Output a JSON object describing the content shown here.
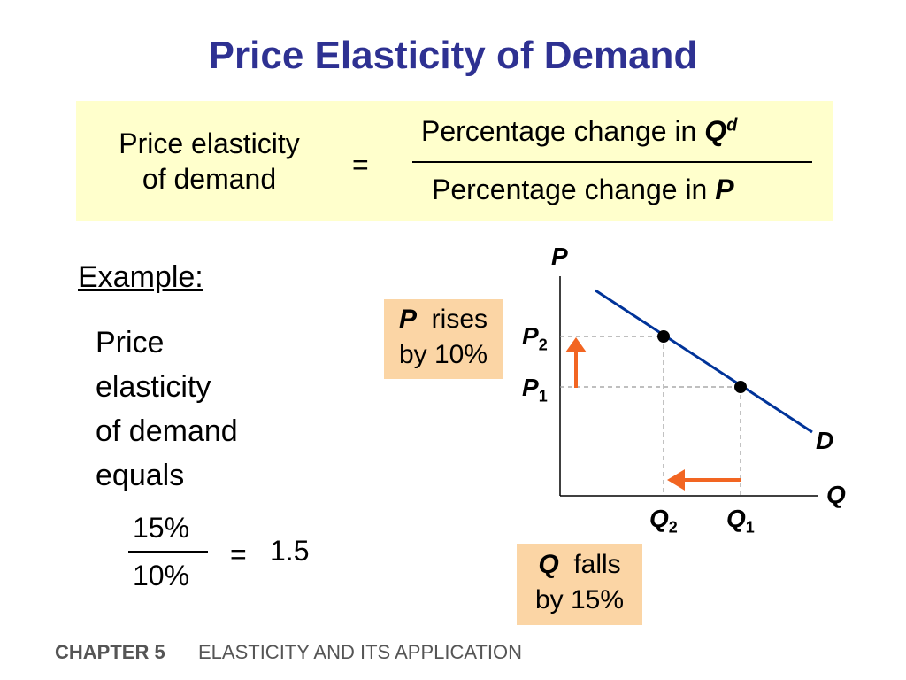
{
  "title": "Price Elasticity of Demand",
  "formula": {
    "lhs_line1": "Price elasticity",
    "lhs_line2": "of demand",
    "equals": "=",
    "numerator_text": "Percentage change in ",
    "numerator_var": "Q",
    "numerator_sup": "d",
    "denominator_text": "Percentage change in ",
    "denominator_var": "P"
  },
  "example": {
    "heading": "Example:",
    "lines": [
      "Price",
      "elasticity",
      "of demand",
      "equals"
    ],
    "fraction_numerator": "15%",
    "fraction_denominator": "10%",
    "equals": "=",
    "result": "1.5"
  },
  "graph": {
    "axis_p": "P",
    "axis_q": "Q",
    "curve_label": "D",
    "p2": {
      "main": "P",
      "sub": "2"
    },
    "p1": {
      "main": "P",
      "sub": "1"
    },
    "q2": {
      "main": "Q",
      "sub": "2"
    },
    "q1": {
      "main": "Q",
      "sub": "1"
    },
    "line_color": "#003399",
    "arrow_color": "#f26522"
  },
  "callouts": {
    "p_var": "P",
    "p_text": "rises",
    "p_line2": "by 10%",
    "q_var": "Q",
    "q_text": "falls",
    "q_line2": "by 15%"
  },
  "footer": {
    "chapter": "CHAPTER 5",
    "title": "ELASTICITY AND ITS APPLICATION"
  }
}
